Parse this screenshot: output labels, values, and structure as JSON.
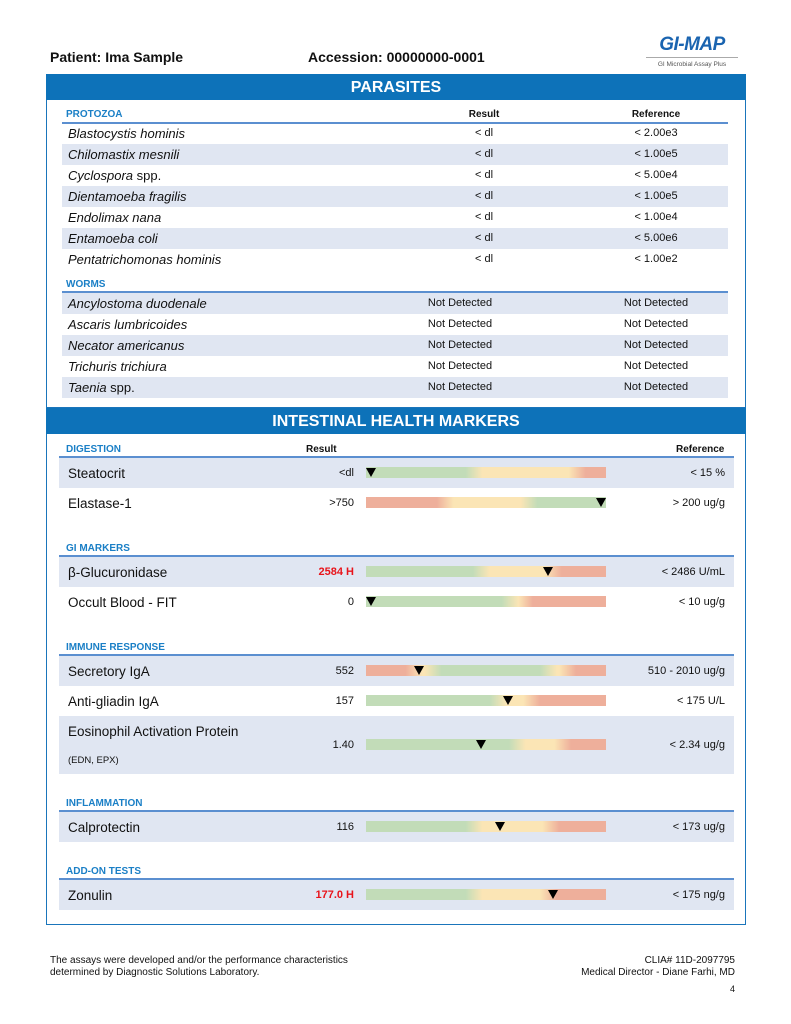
{
  "header": {
    "patient": "Patient: Ima Sample",
    "accession": "Accession: 00000000-0001",
    "logo_text": "GI-MAP",
    "logo_sub": "GI Microbial Assay Plus"
  },
  "parasites": {
    "title": "PARASITES",
    "result_label": "Result",
    "reference_label": "Reference",
    "protozoa": {
      "label": "PROTOZOA",
      "rows": [
        {
          "name": "Blastocystis hominis",
          "suffix": "",
          "result": "< dl",
          "reference": "< 2.00e3"
        },
        {
          "name": "Chilomastix mesnili",
          "suffix": "",
          "result": "< dl",
          "reference": "< 1.00e5"
        },
        {
          "name": "Cyclospora",
          "suffix": " spp.",
          "result": "< dl",
          "reference": "< 5.00e4"
        },
        {
          "name": "Dientamoeba fragilis",
          "suffix": "",
          "result": "< dl",
          "reference": "< 1.00e5"
        },
        {
          "name": "Endolimax nana",
          "suffix": "",
          "result": "< dl",
          "reference": "< 1.00e4"
        },
        {
          "name": "Entamoeba coli",
          "suffix": "",
          "result": "< dl",
          "reference": "< 5.00e6"
        },
        {
          "name": "Pentatrichomonas hominis",
          "suffix": "",
          "result": "< dl",
          "reference": "< 1.00e2"
        }
      ]
    },
    "worms": {
      "label": "WORMS",
      "rows": [
        {
          "name": "Ancylostoma duodenale",
          "suffix": "",
          "result": "Not Detected",
          "reference": "Not Detected"
        },
        {
          "name": "Ascaris lumbricoides",
          "suffix": "",
          "result": "Not Detected",
          "reference": "Not Detected"
        },
        {
          "name": "Necator americanus",
          "suffix": "",
          "result": "Not Detected",
          "reference": "Not Detected"
        },
        {
          "name": "Trichuris trichiura",
          "suffix": "",
          "result": "Not Detected",
          "reference": "Not Detected"
        },
        {
          "name": "Taenia",
          "suffix": " spp.",
          "result": "Not Detected",
          "reference": "Not Detected"
        }
      ]
    }
  },
  "intestinal": {
    "title": "INTESTINAL HEALTH MARKERS",
    "result_label": "Result",
    "reference_label": "Reference",
    "colors": {
      "green": "#c2dcb8",
      "yellow": "#fbe5b5",
      "red": "#eeaf9b",
      "high": "#e8141b"
    },
    "sections": [
      {
        "label": "DIGESTION",
        "rows": [
          {
            "name": "Steatocrit",
            "result": "<dl",
            "high": false,
            "reference": "< 15 %",
            "zones": [
              "green",
              "yellow",
              "red"
            ],
            "marker": 0.02
          },
          {
            "name": "Elastase-1",
            "result": ">750",
            "high": false,
            "reference": "> 200 ug/g",
            "zones": [
              "red",
              "yellow",
              "green"
            ],
            "marker": 0.98
          }
        ]
      },
      {
        "label": "GI MARKERS",
        "rows": [
          {
            "name": "β-Glucuronidase",
            "result": "2584 H",
            "high": true,
            "reference": "< 2486 U/mL",
            "zones": [
              "green",
              "yellow",
              "red"
            ],
            "marker": 0.76
          },
          {
            "name": "Occult Blood - FIT",
            "result": "0",
            "high": false,
            "reference": "< 10 ug/g",
            "zones": [
              "green",
              "yellow",
              "red"
            ],
            "marker": 0.02
          }
        ]
      },
      {
        "label": "IMMUNE RESPONSE",
        "rows": [
          {
            "name": "Secretory IgA",
            "result": "552",
            "high": false,
            "reference": "510 - 2010 ug/g",
            "zones": [
              "red",
              "yellow",
              "green",
              "yellow",
              "red"
            ],
            "marker": 0.22
          },
          {
            "name": "Anti-gliadin IgA",
            "result": "157",
            "high": false,
            "reference": "< 175 U/L",
            "zones": [
              "green",
              "yellow",
              "red"
            ],
            "marker": 0.59
          },
          {
            "name": "Eosinophil Activation Protein",
            "sub": "(EDN, EPX)",
            "result": "1.40",
            "high": false,
            "reference": "< 2.34 ug/g",
            "zones": [
              "green",
              "yellow",
              "red"
            ],
            "marker": 0.48
          }
        ]
      },
      {
        "label": "INFLAMMATION",
        "rows": [
          {
            "name": "Calprotectin",
            "result": "116",
            "high": false,
            "reference": "< 173 ug/g",
            "zones": [
              "green",
              "yellow",
              "red"
            ],
            "marker": 0.56
          }
        ]
      },
      {
        "label": "ADD-ON TESTS",
        "rows": [
          {
            "name": "Zonulin",
            "result": "177.0 H",
            "high": true,
            "reference": "< 175 ng/g",
            "zones": [
              "green",
              "yellow",
              "red"
            ],
            "marker": 0.78
          }
        ]
      }
    ]
  },
  "footer": {
    "disclaimer_1": "The assays were developed and/or the performance characteristics",
    "disclaimer_2": "determined by Diagnostic Solutions Laboratory.",
    "clia": "CLIA# 11D-2097795",
    "director": "Medical Director - Diane Farhi, MD",
    "page": "4"
  }
}
